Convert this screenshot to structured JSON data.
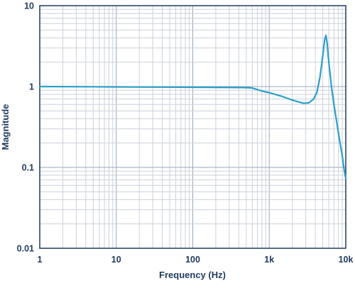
{
  "chart_data": {
    "type": "line",
    "title": "",
    "xlabel": "Frequency (Hz)",
    "ylabel": "Magnitude",
    "x_scale": "log",
    "y_scale": "log",
    "xlim": [
      1,
      10000
    ],
    "ylim": [
      0.01,
      10
    ],
    "grid": true,
    "x_ticks": [
      1,
      10,
      100,
      1000,
      10000
    ],
    "x_tick_labels": [
      "1",
      "10",
      "100",
      "1k",
      "10k"
    ],
    "y_ticks": [
      0.01,
      0.1,
      1,
      10
    ],
    "y_tick_labels": [
      "0.01",
      "0.1",
      "1",
      "10"
    ],
    "series": [
      {
        "color": "#2a9fc9",
        "points": [
          [
            1,
            1.0
          ],
          [
            10,
            0.99
          ],
          [
            100,
            0.98
          ],
          [
            300,
            0.975
          ],
          [
            500,
            0.97
          ],
          [
            600,
            0.96
          ],
          [
            800,
            0.88
          ],
          [
            1000,
            0.84
          ],
          [
            1500,
            0.75
          ],
          [
            2000,
            0.68
          ],
          [
            2800,
            0.62
          ],
          [
            3300,
            0.63
          ],
          [
            3800,
            0.7
          ],
          [
            4200,
            0.85
          ],
          [
            4600,
            1.3
          ],
          [
            5000,
            2.4
          ],
          [
            5300,
            3.8
          ],
          [
            5500,
            4.3
          ],
          [
            5700,
            3.5
          ],
          [
            6000,
            2.0
          ],
          [
            6500,
            1.0
          ],
          [
            7000,
            0.6
          ],
          [
            7500,
            0.4
          ],
          [
            8000,
            0.27
          ],
          [
            8500,
            0.19
          ],
          [
            9000,
            0.14
          ],
          [
            9500,
            0.095
          ],
          [
            10000,
            0.073
          ]
        ]
      }
    ],
    "colors": {
      "line": "#2a9fc9",
      "grid": "#cbd1da",
      "axis": "#1f3a5f",
      "text": "#1f3a5f"
    }
  }
}
